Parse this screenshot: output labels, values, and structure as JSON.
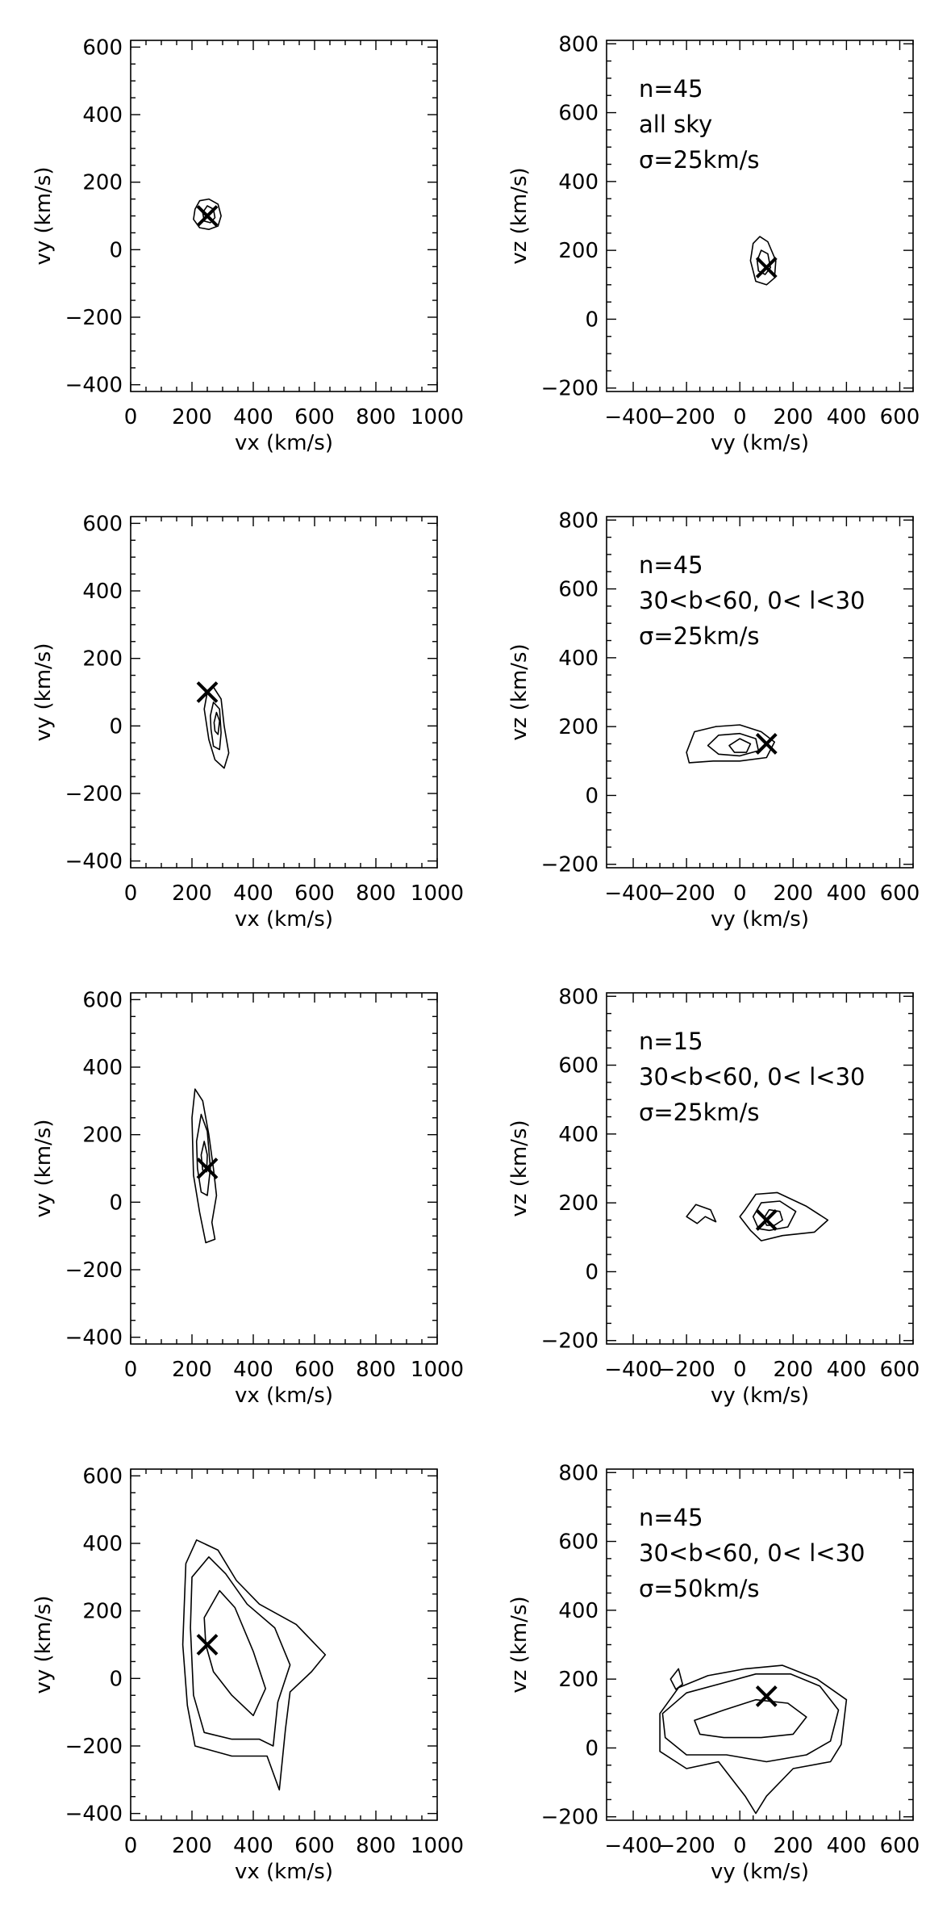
{
  "chart_data": [
    {
      "type": "contour",
      "panel": "1-left",
      "xlabel": "vx (km/s)",
      "ylabel": "vy (km/s)",
      "xlim": [
        0,
        1000
      ],
      "ylim": [
        -420,
        620
      ],
      "xticks": [
        0,
        200,
        400,
        600,
        800,
        1000
      ],
      "yticks": [
        -400,
        -200,
        0,
        200,
        400,
        600
      ],
      "annotations": [],
      "marker": {
        "x": 250,
        "y": 100
      },
      "contours": [
        [
          [
            210,
            120
          ],
          [
            225,
            145
          ],
          [
            255,
            150
          ],
          [
            285,
            135
          ],
          [
            295,
            100
          ],
          [
            285,
            70
          ],
          [
            255,
            60
          ],
          [
            225,
            65
          ],
          [
            205,
            90
          ]
        ],
        [
          [
            235,
            110
          ],
          [
            250,
            130
          ],
          [
            270,
            120
          ],
          [
            275,
            95
          ],
          [
            260,
            80
          ],
          [
            240,
            85
          ]
        ]
      ]
    },
    {
      "type": "contour",
      "panel": "1-right",
      "xlabel": "vy (km/s)",
      "ylabel": "vz (km/s)",
      "xlim": [
        -500,
        650
      ],
      "ylim": [
        -210,
        810
      ],
      "xticks": [
        -400,
        -200,
        0,
        200,
        400,
        600
      ],
      "yticks": [
        -200,
        0,
        200,
        400,
        600,
        800
      ],
      "annotations": [
        "n=45",
        "all sky",
        "σ=25km/s"
      ],
      "marker": {
        "x": 100,
        "y": 150
      },
      "contours": [
        [
          [
            40,
            170
          ],
          [
            50,
            220
          ],
          [
            75,
            240
          ],
          [
            105,
            225
          ],
          [
            135,
            170
          ],
          [
            130,
            120
          ],
          [
            100,
            100
          ],
          [
            60,
            110
          ]
        ],
        [
          [
            65,
            170
          ],
          [
            80,
            200
          ],
          [
            105,
            190
          ],
          [
            115,
            150
          ],
          [
            95,
            130
          ],
          [
            70,
            140
          ]
        ]
      ]
    },
    {
      "type": "contour",
      "panel": "2-left",
      "xlabel": "vx (km/s)",
      "ylabel": "vy (km/s)",
      "xlim": [
        0,
        1000
      ],
      "ylim": [
        -420,
        620
      ],
      "xticks": [
        0,
        200,
        400,
        600,
        800,
        1000
      ],
      "yticks": [
        -400,
        -200,
        0,
        200,
        400,
        600
      ],
      "annotations": [],
      "marker": {
        "x": 250,
        "y": 100
      },
      "contours": [
        [
          [
            240,
            50
          ],
          [
            250,
            100
          ],
          [
            270,
            115
          ],
          [
            295,
            80
          ],
          [
            305,
            0
          ],
          [
            320,
            -80
          ],
          [
            305,
            -125
          ],
          [
            275,
            -100
          ],
          [
            255,
            -40
          ]
        ],
        [
          [
            260,
            30
          ],
          [
            270,
            70
          ],
          [
            290,
            50
          ],
          [
            295,
            -20
          ],
          [
            290,
            -70
          ],
          [
            270,
            -60
          ],
          [
            262,
            -10
          ]
        ],
        [
          [
            272,
            10
          ],
          [
            280,
            40
          ],
          [
            290,
            15
          ],
          [
            285,
            -25
          ],
          [
            275,
            -15
          ]
        ]
      ]
    },
    {
      "type": "contour",
      "panel": "2-right",
      "xlabel": "vy (km/s)",
      "ylabel": "vz (km/s)",
      "xlim": [
        -500,
        650
      ],
      "ylim": [
        -210,
        810
      ],
      "xticks": [
        -400,
        -200,
        0,
        200,
        400,
        600
      ],
      "yticks": [
        -200,
        0,
        200,
        400,
        600,
        800
      ],
      "annotations": [
        "n=45",
        "30<b<60, 0< l<30",
        "σ=25km/s"
      ],
      "marker": {
        "x": 100,
        "y": 150
      },
      "contours": [
        [
          [
            -200,
            125
          ],
          [
            -170,
            185
          ],
          [
            -90,
            200
          ],
          [
            0,
            205
          ],
          [
            80,
            185
          ],
          [
            130,
            155
          ],
          [
            100,
            110
          ],
          [
            0,
            100
          ],
          [
            -100,
            100
          ],
          [
            -190,
            95
          ]
        ],
        [
          [
            -120,
            145
          ],
          [
            -80,
            175
          ],
          [
            0,
            180
          ],
          [
            60,
            165
          ],
          [
            70,
            130
          ],
          [
            0,
            115
          ],
          [
            -80,
            120
          ]
        ],
        [
          [
            -40,
            145
          ],
          [
            0,
            165
          ],
          [
            40,
            150
          ],
          [
            25,
            125
          ],
          [
            -20,
            125
          ]
        ]
      ]
    },
    {
      "type": "contour",
      "panel": "3-left",
      "xlabel": "vx (km/s)",
      "ylabel": "vy (km/s)",
      "xlim": [
        0,
        1000
      ],
      "ylim": [
        -420,
        620
      ],
      "xticks": [
        0,
        200,
        400,
        600,
        800,
        1000
      ],
      "yticks": [
        -400,
        -200,
        0,
        200,
        400,
        600
      ],
      "annotations": [],
      "marker": {
        "x": 250,
        "y": 100
      },
      "contours": [
        [
          [
            200,
            250
          ],
          [
            210,
            335
          ],
          [
            235,
            300
          ],
          [
            255,
            200
          ],
          [
            270,
            100
          ],
          [
            280,
            20
          ],
          [
            265,
            -60
          ],
          [
            275,
            -110
          ],
          [
            245,
            -120
          ],
          [
            225,
            -30
          ],
          [
            205,
            80
          ]
        ],
        [
          [
            215,
            180
          ],
          [
            230,
            260
          ],
          [
            250,
            210
          ],
          [
            260,
            100
          ],
          [
            250,
            20
          ],
          [
            230,
            30
          ],
          [
            218,
            100
          ]
        ],
        [
          [
            230,
            140
          ],
          [
            240,
            180
          ],
          [
            250,
            140
          ],
          [
            248,
            90
          ],
          [
            235,
            95
          ]
        ]
      ]
    },
    {
      "type": "contour",
      "panel": "3-right",
      "xlabel": "vy (km/s)",
      "ylabel": "vz (km/s)",
      "xlim": [
        -500,
        650
      ],
      "ylim": [
        -210,
        810
      ],
      "xticks": [
        -400,
        -200,
        0,
        200,
        400,
        600
      ],
      "yticks": [
        -200,
        0,
        200,
        400,
        600,
        800
      ],
      "annotations": [
        "n=15",
        "30<b<60, 0< l<30",
        "σ=25km/s"
      ],
      "marker": {
        "x": 100,
        "y": 150
      },
      "contours": [
        [
          [
            20,
            180
          ],
          [
            60,
            225
          ],
          [
            140,
            230
          ],
          [
            250,
            190
          ],
          [
            330,
            150
          ],
          [
            280,
            115
          ],
          [
            160,
            105
          ],
          [
            80,
            90
          ],
          [
            40,
            120
          ],
          [
            0,
            160
          ]
        ],
        [
          [
            50,
            160
          ],
          [
            80,
            200
          ],
          [
            150,
            205
          ],
          [
            210,
            175
          ],
          [
            180,
            130
          ],
          [
            110,
            120
          ],
          [
            70,
            125
          ]
        ],
        [
          [
            90,
            155
          ],
          [
            110,
            180
          ],
          [
            150,
            175
          ],
          [
            160,
            150
          ],
          [
            130,
            135
          ],
          [
            100,
            135
          ]
        ],
        [
          [
            -200,
            160
          ],
          [
            -165,
            195
          ],
          [
            -110,
            180
          ],
          [
            -90,
            145
          ],
          [
            -130,
            160
          ],
          [
            -160,
            140
          ]
        ]
      ]
    },
    {
      "type": "contour",
      "panel": "4-left",
      "xlabel": "vx (km/s)",
      "ylabel": "vy (km/s)",
      "xlim": [
        0,
        1000
      ],
      "ylim": [
        -420,
        620
      ],
      "xticks": [
        0,
        200,
        400,
        600,
        800,
        1000
      ],
      "yticks": [
        -400,
        -200,
        0,
        200,
        400,
        600
      ],
      "annotations": [],
      "marker": {
        "x": 250,
        "y": 100
      },
      "contours": [
        [
          [
            180,
            340
          ],
          [
            215,
            410
          ],
          [
            285,
            380
          ],
          [
            345,
            290
          ],
          [
            420,
            220
          ],
          [
            540,
            160
          ],
          [
            635,
            70
          ],
          [
            590,
            20
          ],
          [
            520,
            -40
          ],
          [
            505,
            -150
          ],
          [
            485,
            -330
          ],
          [
            445,
            -230
          ],
          [
            330,
            -230
          ],
          [
            210,
            -200
          ],
          [
            185,
            -80
          ],
          [
            170,
            100
          ]
        ],
        [
          [
            200,
            300
          ],
          [
            255,
            360
          ],
          [
            310,
            310
          ],
          [
            380,
            220
          ],
          [
            470,
            150
          ],
          [
            520,
            40
          ],
          [
            480,
            -70
          ],
          [
            465,
            -200
          ],
          [
            420,
            -180
          ],
          [
            330,
            -180
          ],
          [
            240,
            -160
          ],
          [
            205,
            -50
          ],
          [
            195,
            150
          ]
        ],
        [
          [
            240,
            180
          ],
          [
            290,
            260
          ],
          [
            340,
            210
          ],
          [
            400,
            80
          ],
          [
            440,
            -30
          ],
          [
            400,
            -110
          ],
          [
            330,
            -50
          ],
          [
            270,
            20
          ],
          [
            245,
            100
          ]
        ]
      ]
    },
    {
      "type": "contour",
      "panel": "4-right",
      "xlabel": "vy (km/s)",
      "ylabel": "vz (km/s)",
      "xlim": [
        -500,
        650
      ],
      "ylim": [
        -210,
        810
      ],
      "xticks": [
        -400,
        -200,
        0,
        200,
        400,
        600
      ],
      "yticks": [
        -200,
        0,
        200,
        400,
        600,
        800
      ],
      "annotations": [
        "n=45",
        "30<b<60, 0< l<30",
        "σ=50km/s"
      ],
      "marker": {
        "x": 100,
        "y": 150
      },
      "contours": [
        [
          [
            -300,
            100
          ],
          [
            -230,
            175
          ],
          [
            -120,
            210
          ],
          [
            20,
            230
          ],
          [
            160,
            240
          ],
          [
            290,
            200
          ],
          [
            400,
            140
          ],
          [
            380,
            10
          ],
          [
            340,
            -40
          ],
          [
            200,
            -60
          ],
          [
            100,
            -140
          ],
          [
            60,
            -190
          ],
          [
            20,
            -140
          ],
          [
            -80,
            -40
          ],
          [
            -200,
            -60
          ],
          [
            -300,
            -10
          ]
        ],
        [
          [
            -290,
            100
          ],
          [
            -200,
            160
          ],
          [
            -80,
            185
          ],
          [
            60,
            215
          ],
          [
            190,
            215
          ],
          [
            300,
            180
          ],
          [
            370,
            110
          ],
          [
            340,
            20
          ],
          [
            250,
            -20
          ],
          [
            100,
            -40
          ],
          [
            -50,
            -20
          ],
          [
            -200,
            -20
          ],
          [
            -280,
            30
          ]
        ],
        [
          [
            -170,
            80
          ],
          [
            -60,
            110
          ],
          [
            60,
            140
          ],
          [
            180,
            130
          ],
          [
            250,
            90
          ],
          [
            200,
            40
          ],
          [
            80,
            30
          ],
          [
            -60,
            30
          ],
          [
            -150,
            40
          ]
        ],
        [
          [
            -260,
            200
          ],
          [
            -230,
            230
          ],
          [
            -215,
            185
          ],
          [
            -240,
            170
          ]
        ]
      ]
    }
  ]
}
